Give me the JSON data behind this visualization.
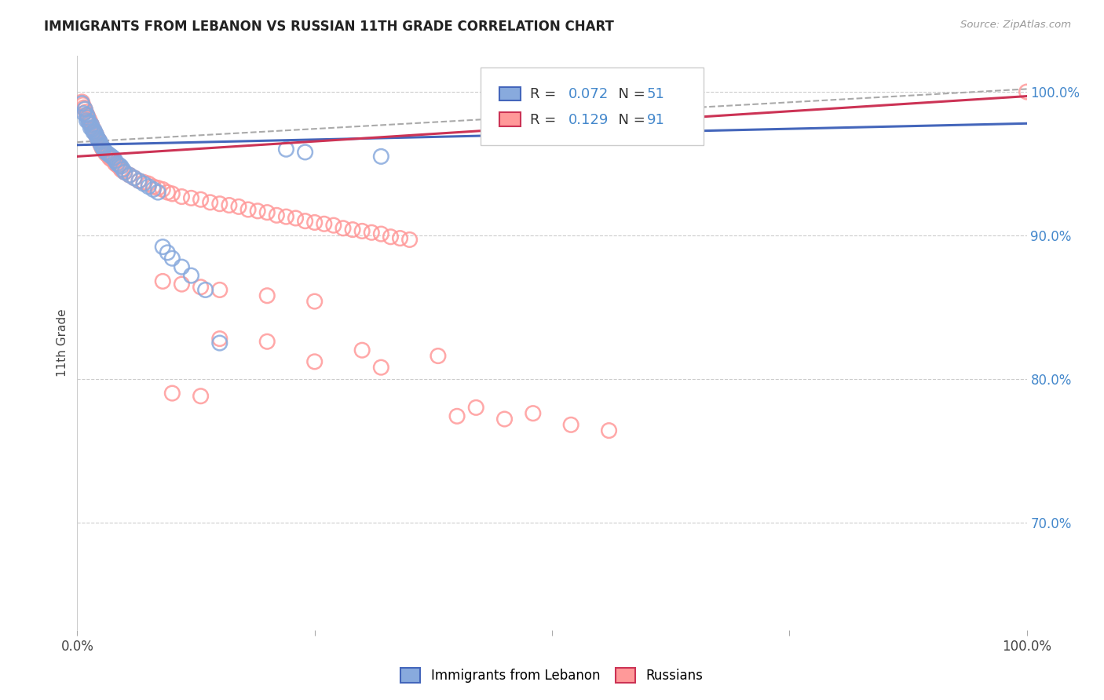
{
  "title": "IMMIGRANTS FROM LEBANON VS RUSSIAN 11TH GRADE CORRELATION CHART",
  "source": "Source: ZipAtlas.com",
  "ylabel": "11th Grade",
  "legend_lebanon": "Immigrants from Lebanon",
  "legend_russians": "Russians",
  "R_lebanon": 0.072,
  "N_lebanon": 51,
  "R_russians": 0.129,
  "N_russians": 91,
  "color_lebanon": "#88AADD",
  "color_russians": "#FF9999",
  "color_lebanon_line": "#4466BB",
  "color_russians_line": "#CC3355",
  "color_dashed": "#AAAAAA",
  "ytick_labels": [
    "70.0%",
    "80.0%",
    "90.0%",
    "100.0%"
  ],
  "ytick_values": [
    0.7,
    0.8,
    0.9,
    1.0
  ],
  "xlim": [
    0.0,
    1.0
  ],
  "ylim": [
    0.625,
    1.025
  ],
  "lebanon_x": [
    0.005,
    0.007,
    0.008,
    0.01,
    0.01,
    0.011,
    0.012,
    0.013,
    0.014,
    0.015,
    0.016,
    0.017,
    0.018,
    0.019,
    0.02,
    0.021,
    0.022,
    0.023,
    0.024,
    0.025,
    0.026,
    0.027,
    0.028,
    0.03,
    0.032,
    0.034,
    0.036,
    0.038,
    0.04,
    0.042,
    0.044,
    0.046,
    0.048,
    0.05,
    0.055,
    0.06,
    0.065,
    0.07,
    0.075,
    0.08,
    0.085,
    0.09,
    0.095,
    0.1,
    0.11,
    0.12,
    0.135,
    0.15,
    0.22,
    0.24,
    0.32
  ],
  "lebanon_y": [
    0.992,
    0.985,
    0.988,
    0.984,
    0.98,
    0.982,
    0.979,
    0.978,
    0.975,
    0.977,
    0.974,
    0.972,
    0.973,
    0.971,
    0.97,
    0.968,
    0.967,
    0.966,
    0.965,
    0.963,
    0.962,
    0.961,
    0.96,
    0.958,
    0.957,
    0.956,
    0.955,
    0.954,
    0.952,
    0.95,
    0.949,
    0.948,
    0.946,
    0.944,
    0.942,
    0.94,
    0.938,
    0.936,
    0.934,
    0.932,
    0.93,
    0.892,
    0.888,
    0.884,
    0.878,
    0.872,
    0.862,
    0.825,
    0.96,
    0.958,
    0.955
  ],
  "russians_x": [
    0.005,
    0.006,
    0.007,
    0.008,
    0.009,
    0.01,
    0.011,
    0.012,
    0.013,
    0.014,
    0.015,
    0.016,
    0.017,
    0.018,
    0.019,
    0.02,
    0.021,
    0.022,
    0.023,
    0.024,
    0.025,
    0.026,
    0.027,
    0.028,
    0.03,
    0.032,
    0.034,
    0.036,
    0.038,
    0.04,
    0.042,
    0.044,
    0.046,
    0.048,
    0.05,
    0.055,
    0.06,
    0.065,
    0.07,
    0.075,
    0.08,
    0.085,
    0.09,
    0.095,
    0.1,
    0.11,
    0.12,
    0.13,
    0.14,
    0.15,
    0.16,
    0.17,
    0.18,
    0.19,
    0.2,
    0.21,
    0.22,
    0.23,
    0.24,
    0.25,
    0.26,
    0.27,
    0.28,
    0.29,
    0.3,
    0.31,
    0.32,
    0.33,
    0.34,
    0.35,
    0.09,
    0.11,
    0.13,
    0.15,
    0.2,
    0.25,
    0.15,
    0.2,
    0.3,
    0.38,
    0.25,
    0.32,
    0.1,
    0.13,
    0.4,
    0.45,
    0.42,
    0.48,
    0.52,
    0.56,
    1.0
  ],
  "russians_y": [
    0.993,
    0.991,
    0.989,
    0.988,
    0.986,
    0.984,
    0.983,
    0.981,
    0.98,
    0.978,
    0.977,
    0.975,
    0.974,
    0.972,
    0.971,
    0.97,
    0.968,
    0.967,
    0.966,
    0.964,
    0.963,
    0.961,
    0.96,
    0.959,
    0.957,
    0.956,
    0.954,
    0.953,
    0.952,
    0.95,
    0.949,
    0.948,
    0.946,
    0.945,
    0.944,
    0.942,
    0.94,
    0.938,
    0.937,
    0.936,
    0.934,
    0.933,
    0.932,
    0.93,
    0.929,
    0.927,
    0.926,
    0.925,
    0.923,
    0.922,
    0.921,
    0.92,
    0.918,
    0.917,
    0.916,
    0.914,
    0.913,
    0.912,
    0.91,
    0.909,
    0.908,
    0.907,
    0.905,
    0.904,
    0.903,
    0.902,
    0.901,
    0.899,
    0.898,
    0.897,
    0.868,
    0.866,
    0.864,
    0.862,
    0.858,
    0.854,
    0.828,
    0.826,
    0.82,
    0.816,
    0.812,
    0.808,
    0.79,
    0.788,
    0.774,
    0.772,
    0.78,
    0.776,
    0.768,
    0.764,
    1.0
  ],
  "lb_line": [
    0.0,
    1.0,
    0.963,
    0.978
  ],
  "ru_line": [
    0.0,
    1.0,
    0.955,
    0.997
  ],
  "dash_line": [
    0.0,
    1.0,
    0.965,
    1.002
  ]
}
